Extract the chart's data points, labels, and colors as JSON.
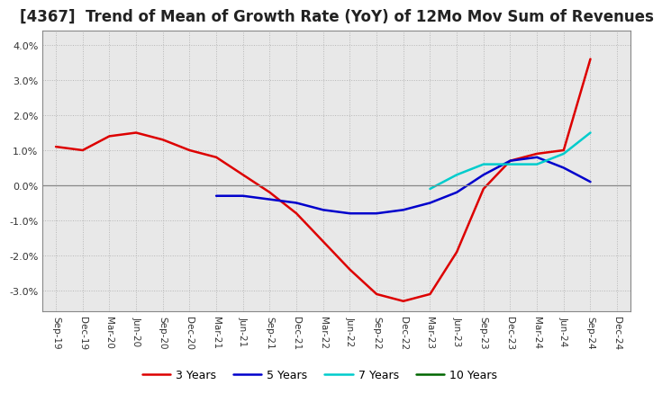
{
  "title": "[4367]  Trend of Mean of Growth Rate (YoY) of 12Mo Mov Sum of Revenues",
  "title_fontsize": 12,
  "background_color": "#ffffff",
  "plot_bg_color": "#e8e8e8",
  "grid_color": "#aaaaaa",
  "ylim": [
    -0.036,
    0.044
  ],
  "yticks": [
    -0.03,
    -0.02,
    -0.01,
    0.0,
    0.01,
    0.02,
    0.03,
    0.04
  ],
  "x_labels": [
    "Sep-19",
    "Dec-19",
    "Mar-20",
    "Jun-20",
    "Sep-20",
    "Dec-20",
    "Mar-21",
    "Jun-21",
    "Sep-21",
    "Dec-21",
    "Mar-22",
    "Jun-22",
    "Sep-22",
    "Dec-22",
    "Mar-23",
    "Jun-23",
    "Sep-23",
    "Dec-23",
    "Mar-24",
    "Jun-24",
    "Sep-24",
    "Dec-24"
  ],
  "y3": [
    0.011,
    0.01,
    0.014,
    0.015,
    0.013,
    0.01,
    0.008,
    0.003,
    -0.002,
    -0.008,
    -0.016,
    -0.024,
    -0.031,
    -0.033,
    -0.031,
    -0.019,
    -0.001,
    0.007,
    0.009,
    0.01,
    0.036,
    null
  ],
  "y5": [
    null,
    null,
    null,
    null,
    null,
    null,
    -0.003,
    -0.003,
    -0.004,
    -0.005,
    -0.007,
    -0.008,
    -0.008,
    -0.007,
    -0.005,
    -0.002,
    0.003,
    0.007,
    0.008,
    0.005,
    0.001,
    null
  ],
  "y7": [
    null,
    null,
    null,
    null,
    null,
    null,
    null,
    null,
    null,
    null,
    null,
    null,
    null,
    null,
    -0.001,
    0.003,
    0.006,
    0.006,
    0.006,
    0.009,
    0.015,
    null
  ],
  "y10": [
    null,
    null,
    null,
    null,
    null,
    null,
    null,
    null,
    null,
    null,
    null,
    null,
    null,
    null,
    null,
    null,
    null,
    null,
    null,
    null,
    null,
    null
  ],
  "color_3y": "#dd0000",
  "color_5y": "#0000cc",
  "color_7y": "#00cccc",
  "color_10y": "#006600",
  "linewidth": 1.8
}
